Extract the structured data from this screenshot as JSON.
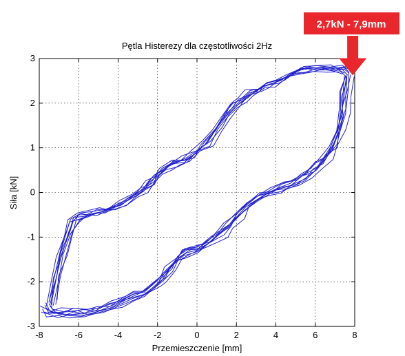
{
  "chart_data": {
    "type": "line",
    "title": "Pętla Histerezy dla częstotliwości 2Hz",
    "xlabel": "Przemieszczenie [mm]",
    "ylabel": "Siła [kN]",
    "xlim": [
      -8,
      8
    ],
    "ylim": [
      -3,
      3
    ],
    "xticks": [
      "-8",
      "-6",
      "-4",
      "-2",
      "0",
      "2",
      "4",
      "6",
      "8"
    ],
    "yticks": [
      "3",
      "2",
      "1",
      "0",
      "-1",
      "-2",
      "-3"
    ],
    "grid": true,
    "line_color": "#1f1fcc",
    "series": [
      {
        "branch": "upper",
        "x": [
          -7.3,
          -7.1,
          -6.8,
          -6.5,
          -6.2,
          -5.8,
          -5.3,
          -4.8,
          -4.3,
          -3.8,
          -3.2,
          -2.7,
          -2.3,
          -2.0,
          -1.6,
          -1.1,
          -0.6,
          0.0,
          0.5,
          1.0,
          1.5,
          1.9,
          2.3,
          2.8,
          3.3,
          3.8,
          4.3,
          4.8,
          5.3,
          6.0,
          6.8,
          7.4,
          7.7
        ],
        "y": [
          -2.5,
          -1.9,
          -1.4,
          -0.9,
          -0.6,
          -0.5,
          -0.45,
          -0.4,
          -0.35,
          -0.25,
          -0.1,
          0.05,
          0.2,
          0.4,
          0.55,
          0.65,
          0.75,
          0.9,
          1.1,
          1.4,
          1.7,
          1.95,
          2.1,
          2.25,
          2.35,
          2.45,
          2.55,
          2.65,
          2.75,
          2.8,
          2.8,
          2.8,
          2.7
        ]
      },
      {
        "branch": "lower",
        "x": [
          7.7,
          7.6,
          7.5,
          7.3,
          7.0,
          6.6,
          6.1,
          5.6,
          5.0,
          4.4,
          3.8,
          3.2,
          2.6,
          2.1,
          1.7,
          1.3,
          0.8,
          0.2,
          -0.4,
          -0.9,
          -1.3,
          -1.7,
          -2.1,
          -2.6,
          -3.1,
          -3.7,
          -4.3,
          -5.0,
          -5.6,
          -6.2,
          -6.8,
          -7.4,
          -7.6
        ],
        "y": [
          2.6,
          2.2,
          1.8,
          1.4,
          1.0,
          0.75,
          0.55,
          0.35,
          0.2,
          0.1,
          0.0,
          -0.1,
          -0.3,
          -0.55,
          -0.75,
          -0.95,
          -1.1,
          -1.25,
          -1.35,
          -1.5,
          -1.75,
          -1.95,
          -2.1,
          -2.25,
          -2.35,
          -2.45,
          -2.55,
          -2.65,
          -2.7,
          -2.7,
          -2.7,
          -2.7,
          -2.6
        ]
      }
    ],
    "annotation": {
      "text": "2,7kN - 7,9mm",
      "x": 7.9,
      "y": 2.7,
      "box_color": "#e8262b",
      "text_color": "#ffffff"
    }
  }
}
